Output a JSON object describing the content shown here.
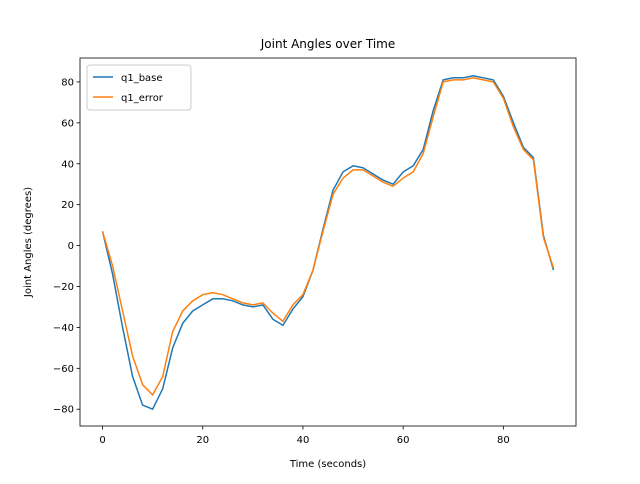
{
  "chart_data": {
    "type": "line",
    "title": "Joint Angles over Time",
    "x_label": "Time (seconds)",
    "y_label": "Joint Angles (degrees)",
    "x": [
      0,
      2,
      4,
      6,
      8,
      10,
      12,
      14,
      16,
      18,
      20,
      22,
      24,
      26,
      28,
      30,
      32,
      34,
      36,
      38,
      40,
      42,
      44,
      46,
      48,
      50,
      52,
      54,
      56,
      58,
      60,
      62,
      64,
      66,
      68,
      70,
      72,
      74,
      76,
      78,
      80,
      82,
      84,
      86,
      88,
      90
    ],
    "series": [
      {
        "name": "q1_base",
        "color": "#1f77b4",
        "values": [
          7,
          -14,
          -40,
          -64,
          -78,
          -80,
          -70,
          -50,
          -38,
          -32,
          -29,
          -26,
          -26,
          -27,
          -29,
          -30,
          -29,
          -36,
          -39,
          -31,
          -25,
          -12,
          8,
          27,
          36,
          39,
          38,
          35,
          32,
          30,
          36,
          39,
          47,
          66,
          81,
          82,
          82,
          83,
          82,
          81,
          73,
          60,
          48,
          43,
          5,
          -12
        ]
      },
      {
        "name": "q1_error",
        "color": "#ff7f0e",
        "values": [
          7,
          -10,
          -32,
          -54,
          -68,
          -73,
          -64,
          -42,
          -32,
          -27,
          -24,
          -23,
          -24,
          -26,
          -28,
          -29,
          -28,
          -33,
          -37,
          -29,
          -24,
          -12,
          7,
          25,
          33,
          37,
          37,
          34,
          31,
          29,
          33,
          36,
          45,
          63,
          80,
          81,
          81,
          82,
          81,
          80,
          72,
          58,
          47,
          42,
          4,
          -11
        ]
      }
    ],
    "xlim": [
      -4.5,
      94.5
    ],
    "ylim": [
      -88.2,
      91.7
    ],
    "xticks": [
      0,
      20,
      40,
      60,
      80
    ],
    "yticks": [
      {
        "value": -80,
        "label": "−80"
      },
      {
        "value": -60,
        "label": "−60"
      },
      {
        "value": -40,
        "label": "−40"
      },
      {
        "value": -20,
        "label": "−20"
      },
      0,
      20,
      40,
      60,
      80
    ],
    "legend": "upper left",
    "grid": false
  }
}
